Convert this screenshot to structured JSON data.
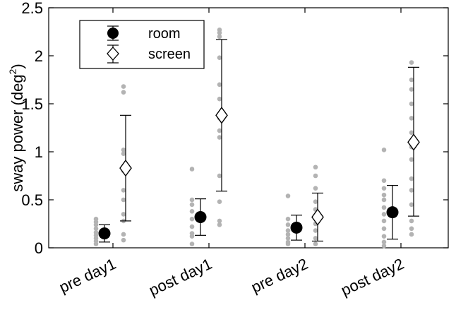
{
  "chart_data": {
    "type": "scatter",
    "ylabel": "sway power (deg",
    "ylabel_sup": "2",
    "ylabel_close": ")",
    "ylim": [
      0,
      2.5
    ],
    "yticks": [
      "0",
      "0.5",
      "1",
      "1.5",
      "2",
      "2.5"
    ],
    "ytick_values": [
      0,
      0.5,
      1,
      1.5,
      2,
      2.5
    ],
    "categories": [
      "pre day1",
      "post day1",
      "pre day2",
      "post day2"
    ],
    "grid": false,
    "legend_position": "top-left",
    "series": [
      {
        "name": "room",
        "marker": "filled-circle",
        "color": "#000000",
        "means": [
          0.15,
          0.32,
          0.21,
          0.37
        ],
        "err_low": [
          0.06,
          0.13,
          0.08,
          0.09
        ],
        "err_high": [
          0.24,
          0.51,
          0.34,
          0.65
        ],
        "individual": [
          [
            0.3,
            0.27,
            0.24,
            0.2,
            0.16,
            0.13,
            0.1,
            0.07,
            0.04
          ],
          [
            0.82,
            0.5,
            0.45,
            0.38,
            0.3,
            0.22,
            0.15,
            0.12,
            0.04
          ],
          [
            0.54,
            0.3,
            0.24,
            0.18,
            0.14,
            0.1,
            0.06,
            0.04
          ],
          [
            1.02,
            0.7,
            0.62,
            0.55,
            0.5,
            0.42,
            0.35,
            0.28,
            0.2,
            0.12,
            0.06,
            0.02
          ]
        ]
      },
      {
        "name": "screen",
        "marker": "open-diamond",
        "color": "#000000",
        "means": [
          0.83,
          1.38,
          0.32,
          1.1
        ],
        "err_low": [
          0.28,
          0.59,
          0.07,
          0.33
        ],
        "err_high": [
          1.38,
          2.17,
          0.57,
          1.88
        ],
        "individual": [
          [
            1.68,
            1.62,
            1.02,
            0.98,
            0.8,
            0.6,
            0.5,
            0.35,
            0.28,
            0.14,
            0.08
          ],
          [
            2.27,
            2.24,
            2.2,
            1.98,
            1.7,
            1.55,
            1.35,
            1.22,
            1.15,
            0.75,
            0.48,
            0.28,
            0.24
          ],
          [
            0.84,
            0.75,
            0.62,
            0.48,
            0.4,
            0.32,
            0.25,
            0.18,
            0.1,
            0.04
          ],
          [
            1.93,
            1.75,
            1.65,
            1.5,
            1.35,
            1.2,
            1.05,
            0.92,
            0.72,
            0.6,
            0.45,
            0.28,
            0.2,
            0.14
          ]
        ]
      }
    ]
  },
  "colors": {
    "individual_points": "#b3b3b3",
    "axis": "#000000"
  }
}
